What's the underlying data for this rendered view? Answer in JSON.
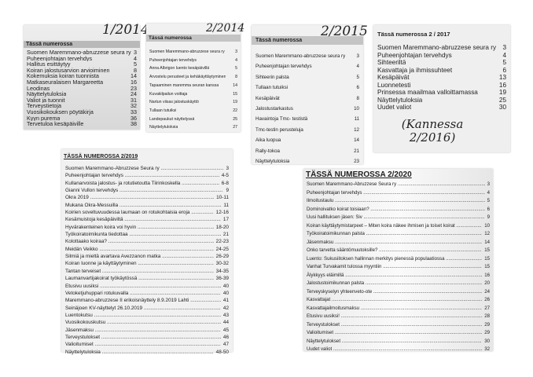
{
  "panels": [
    {
      "id": "p1",
      "handwritten": "1/2014",
      "header": "Tässä numerossa",
      "dots": false,
      "items": [
        [
          "Suomen Maremmano-abruzzese seura ry",
          "3"
        ],
        [
          "Puheenjohtajan tervehdys",
          "4"
        ],
        [
          "Hallitus esittäytyy",
          "5"
        ],
        [
          "Koiran jalostusarvion arvioiminen",
          "8"
        ],
        [
          "Kokemuksia koiran tuonnista",
          "14"
        ],
        [
          "Matkaseuralaisen Margareetta",
          "16"
        ],
        [
          "Leodinas",
          "23"
        ],
        [
          "Näyttelytuloksia",
          "24"
        ],
        [
          "Valiot ja tuonnit",
          "31"
        ],
        [
          "Terveystietoja",
          "32"
        ],
        [
          "Vuosikokouksen pöytäkirja",
          "33"
        ],
        [
          "Kyyn purema",
          "36"
        ],
        [
          "Tervetuloa kesäpäiville",
          "38"
        ]
      ]
    },
    {
      "id": "p2",
      "handwritten": "2/2014",
      "header": "Tässä numerossa",
      "dots": false,
      "items": [
        [
          "Suomen Maremmano-abruzzese seura ry",
          "3"
        ],
        [
          "Puheenjohtajan tervehdys",
          "4"
        ],
        [
          "Anna Albrigon luento kesäpäivillä",
          "5"
        ],
        [
          "Arvostelu perusteet ja kehäkäyttäytyminen",
          "8"
        ],
        [
          "Tapaaminen maremma seuran kanssa",
          "14"
        ],
        [
          "Kuvakilpailun voittaja",
          "15"
        ],
        [
          "Nartun viisas jalostuskäyttö",
          "19"
        ],
        [
          "Tullaan tutuiksi",
          "22"
        ],
        [
          "Landepaukut näyttelyssä",
          "25"
        ],
        [
          "Näyttelytuloksia",
          "27"
        ]
      ]
    },
    {
      "id": "p3",
      "handwritten": "2/2015",
      "header": "Tässä numerossa",
      "dots": false,
      "items": [
        [
          "Suomen Maremmano-abruzzese seura ry",
          "3"
        ],
        [
          "Puheenjohtajan tervehdys",
          "4"
        ],
        [
          "Sihteerin palsta",
          "5"
        ],
        [
          "Tullaan tutuiksi",
          "6"
        ],
        [
          "Kesäpäivät",
          "8"
        ],
        [
          "Jalostustarkastus",
          "10"
        ],
        [
          "Havaintoja Tmc- testistä",
          "11"
        ],
        [
          "Tmc-testin perusteluja",
          "12"
        ],
        [
          "Aika luopua",
          "14"
        ],
        [
          "Rally-tokoa",
          "21"
        ],
        [
          "Näyttelytuloksia",
          "23"
        ]
      ]
    },
    {
      "id": "p4",
      "handwritten": "(Kannessa 2/2016)",
      "header": "Tässä numerossa 2 / 2017",
      "dots": false,
      "items": [
        [
          "Suomen Maremmano-abruzzese seura ry",
          "3"
        ],
        [
          "Puheenjohtajan tervehdys",
          "4"
        ],
        [
          "Sihteeriltä",
          "5"
        ],
        [
          "Kasvattaja ja ihmissuhteet",
          "6"
        ],
        [
          "Kesäpäivät",
          "13"
        ],
        [
          "Luonnetesti",
          "16"
        ],
        [
          "Prinsessa maailmaa valloittamassa",
          "19"
        ],
        [
          "Näyttelytuloksia",
          "25"
        ],
        [
          "Uudet valiot",
          "30"
        ]
      ]
    },
    {
      "id": "p5",
      "header": "TÄSSÄ NUMEROSSA 2/2019",
      "dots": true,
      "items": [
        [
          "Suomen Maremmano-Abruzzese Seura ry",
          "3"
        ],
        [
          "Puheenjohtajan tervehdys",
          "4-5"
        ],
        [
          "Kullanarvoista jalostus- ja rotutietoutta Tiirinkoskella",
          "6-8"
        ],
        [
          "Gianni Vullon tervehdys",
          "9"
        ],
        [
          "Okra 2019",
          "10-11"
        ],
        [
          "Mukana Okra-Messuilla",
          "11"
        ],
        [
          "Koirien soveltuvuudessa laumaan on rotukohtaisia eroja",
          "12-16"
        ],
        [
          "Kesämuistoja kesäpäiviltä",
          "17"
        ],
        [
          "Hyvärakenteinen koira voi hyvin",
          "18-20"
        ],
        [
          "Työkoiratoimikunta tiedottaa",
          "21"
        ],
        [
          "Kolottaako koiraa?",
          "22-23"
        ],
        [
          "Meidän Veikko",
          "24-25"
        ],
        [
          "Silmiä ja mieltä avartava Avezzanon matka",
          "26-29"
        ],
        [
          "Koiran luonne ja käyttäytyminen",
          "30-32"
        ],
        [
          "Tantan terveiset",
          "34-35"
        ],
        [
          "Laumanvartijakoirat työkäytössä",
          "36-39"
        ],
        [
          "Etusivu uusiksi",
          "40"
        ],
        [
          "Vetoketjuhuppari rotukuvalla",
          "40"
        ],
        [
          "Maremmano-abruzzese II erikoisnäyttely 8.9.2019 Lahti",
          "41"
        ],
        [
          "Seinäjoen KV-näyttelyt 26.10.2019",
          "42"
        ],
        [
          "Luentokutsu",
          "43"
        ],
        [
          "Vuosikokouskutsu",
          "44"
        ],
        [
          "Jäsenmaksu",
          "45"
        ],
        [
          "Terveystulokset",
          "46"
        ],
        [
          "Valioitumiset",
          "47"
        ],
        [
          "Näyttelytuloksia",
          "48-50"
        ]
      ]
    },
    {
      "id": "p6",
      "header": "TÄSSÄ NUMEROSSA 2/2020",
      "dots": true,
      "items": [
        [
          "Suomen Maremmano-Abruzzese Seura ry",
          "3"
        ],
        [
          "Puheenjohtajan tervehdys",
          "4"
        ],
        [
          "Ilmoitustaulu",
          "5"
        ],
        [
          "Dominoivatko koirat toisiaan?",
          "6"
        ],
        [
          "Uusi hallituksen jäsen: Siv",
          "9"
        ],
        [
          "Koiran käyttäytymistarpeet – Miten koira näkee ihmisen ja toiset koirat",
          "10"
        ],
        [
          "Työkoiratoimikunnan palsta",
          "12"
        ],
        [
          "Jäsenmaksu",
          "14"
        ],
        [
          "Onko tarvetta sääntömuutoksille?",
          "15"
        ],
        [
          "Luento: Sukusiitoksen hallinnan merkitys pienessä populaatiossa",
          "15"
        ],
        [
          "Vanhat Turvakamit tulossa myyntiin",
          "15"
        ],
        [
          "Älykkyys eläimillä",
          "16"
        ],
        [
          "Jalostustoimikunnan palsta",
          "20"
        ],
        [
          "Terveyskyselyn yhteenveto-ote",
          "24"
        ],
        [
          "Kasvattajat",
          "26"
        ],
        [
          "Kasvattajailmoitusmaksu",
          "27"
        ],
        [
          "Etusivu uusiksi!",
          "28"
        ],
        [
          "Terveystulokset",
          "29"
        ],
        [
          "Valioitumiset",
          "29"
        ],
        [
          "Näyttelytulokset",
          "30"
        ],
        [
          "Uudet valiot",
          "32"
        ]
      ]
    }
  ]
}
